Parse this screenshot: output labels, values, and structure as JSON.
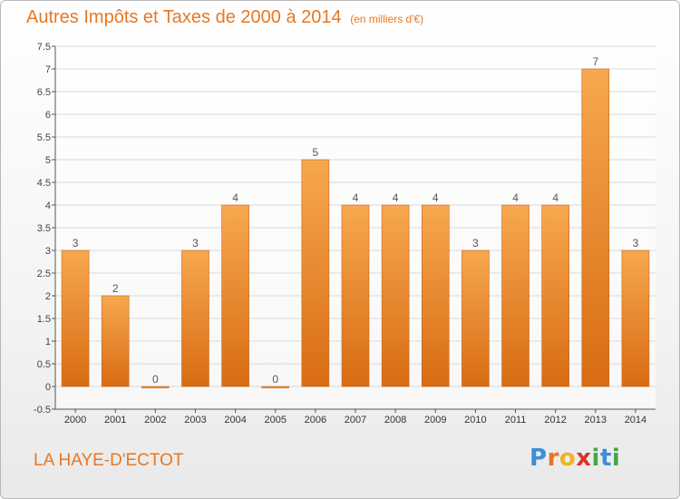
{
  "title": "Autres Impôts et Taxes de 2000 à 2014",
  "subtitle": "(en milliers d'€)",
  "commune": "LA HAYE-D'ECTOT",
  "logo": {
    "p": "P",
    "r": "r",
    "o": "o",
    "x": "x",
    "i": "i",
    "t": "t",
    "i2": "i"
  },
  "colors": {
    "accent": "#e87722",
    "bar_top": "#f7a84e",
    "bar_bottom": "#d86c14",
    "grid": "#d9d9d9",
    "axis": "#555555"
  },
  "chart_data": {
    "type": "bar",
    "title": "Autres Impôts et Taxes de 2000 à 2014",
    "subtitle": "(en milliers d'€)",
    "categories": [
      "2000",
      "2001",
      "2002",
      "2003",
      "2004",
      "2005",
      "2006",
      "2007",
      "2008",
      "2009",
      "2010",
      "2011",
      "2012",
      "2013",
      "2014"
    ],
    "values": [
      3,
      2,
      0,
      3,
      4,
      0,
      5,
      4,
      4,
      4,
      3,
      4,
      4,
      7,
      3
    ],
    "data_labels": [
      "3",
      "2",
      "0",
      "3",
      "4",
      "0",
      "5",
      "4",
      "4",
      "4",
      "3",
      "4",
      "4",
      "7",
      "3"
    ],
    "ylim": [
      -0.5,
      7.5
    ],
    "yticks": [
      -0.5,
      0,
      0.5,
      1,
      1.5,
      2,
      2.5,
      3,
      3.5,
      4,
      4.5,
      5,
      5.5,
      6,
      6.5,
      7,
      7.5
    ],
    "ytick_labels": [
      "-0.5",
      "0",
      "0.5",
      "1",
      "1.5",
      "2",
      "2.5",
      "3",
      "3.5",
      "4",
      "4.5",
      "5",
      "5.5",
      "6",
      "6.5",
      "7",
      "7.5"
    ],
    "grid": true,
    "xlabel": "",
    "ylabel": ""
  }
}
